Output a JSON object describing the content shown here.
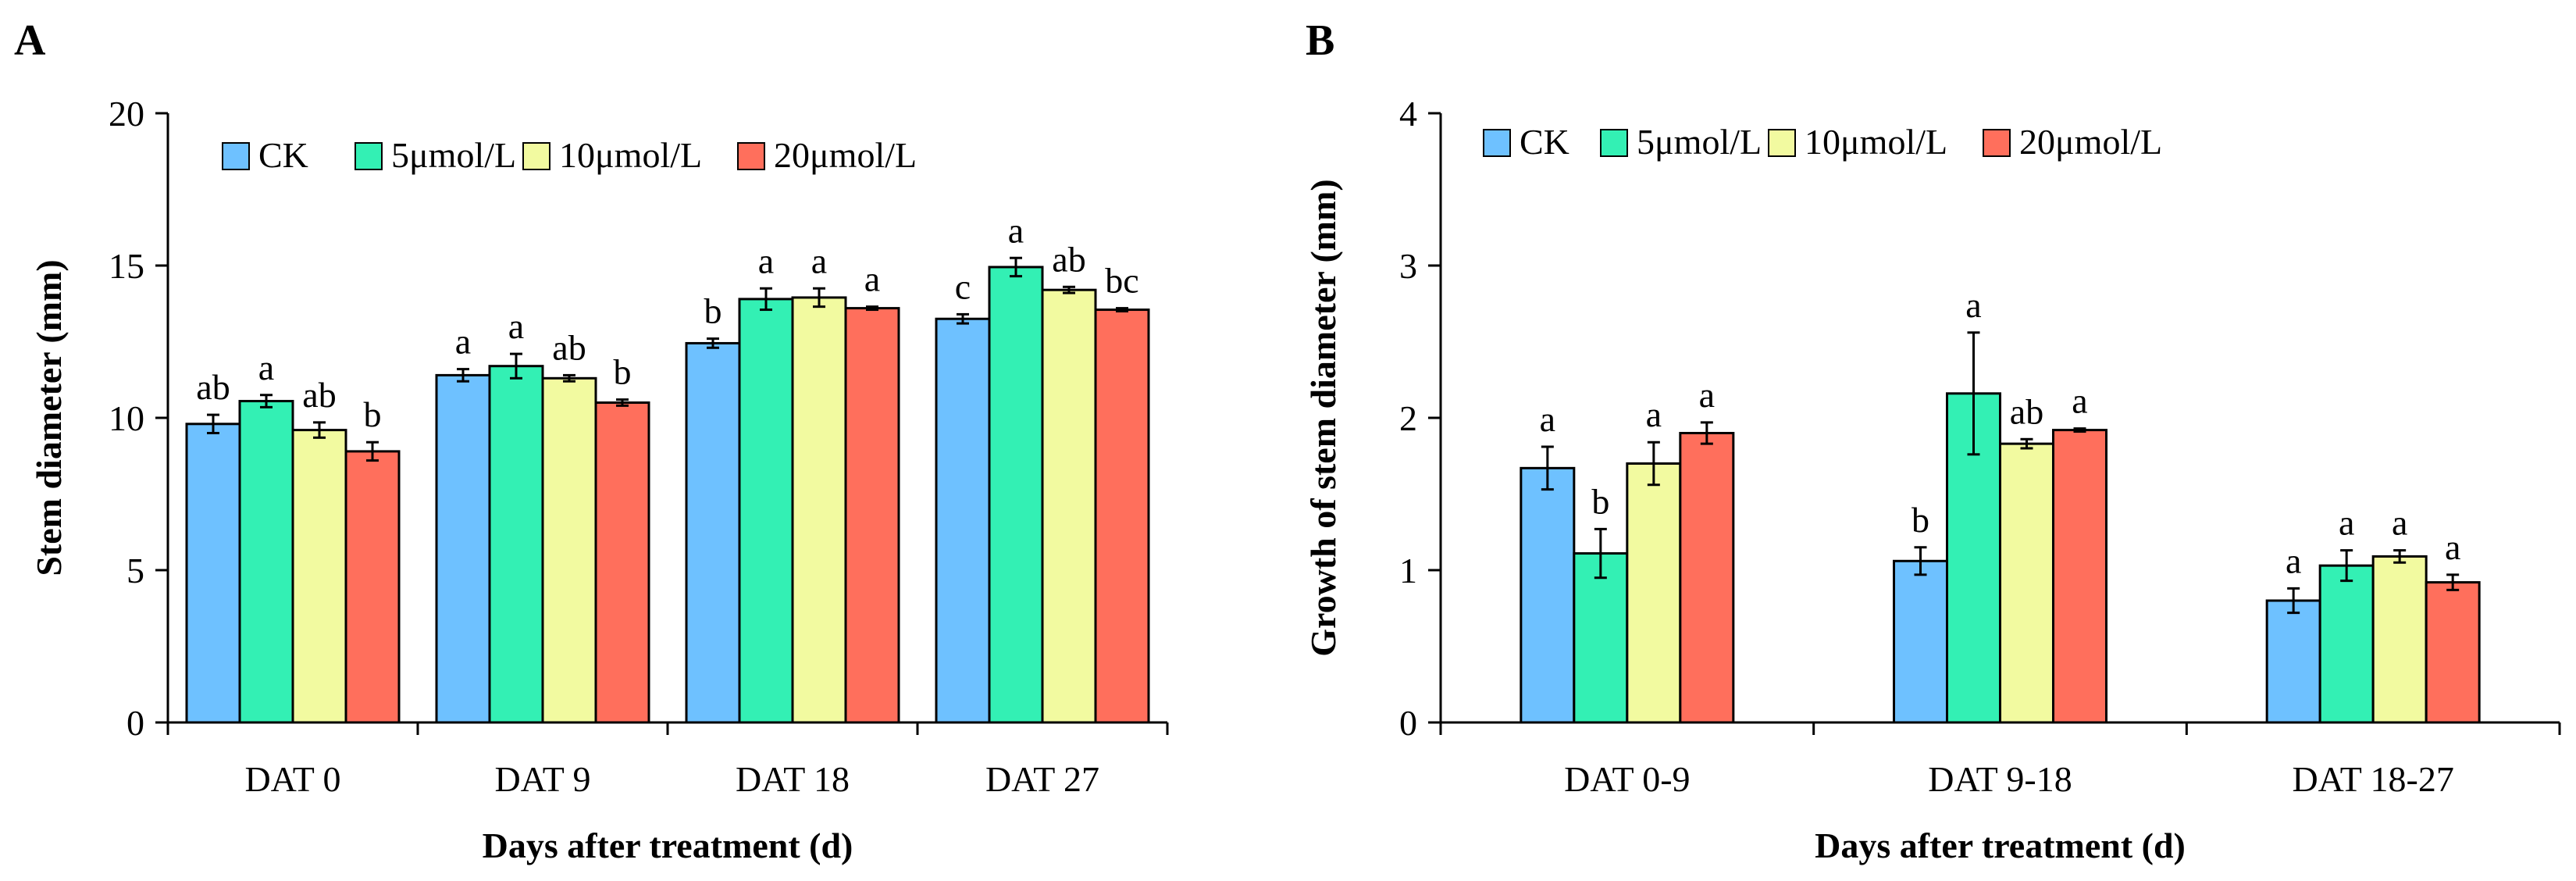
{
  "colors": {
    "CK": "#6EC1FF",
    "5umol": "#33F0B4",
    "10umol": "#F2FAA0",
    "20umol": "#FF6F5C",
    "axis": "#000000"
  },
  "chart_data": [
    {
      "panel": "A",
      "type": "bar",
      "title": "",
      "xlabel": "Days after treatment (d)",
      "ylabel": "Stem diameter (mm)",
      "ylim": [
        0,
        20
      ],
      "yticks": [
        0,
        5,
        10,
        15,
        20
      ],
      "legend_position": "top-left",
      "categories": [
        "DAT 0",
        "DAT 9",
        "DAT 18",
        "DAT 27"
      ],
      "series": [
        {
          "name": "CK",
          "values": [
            9.8,
            11.4,
            12.45,
            13.25
          ],
          "errors": [
            0.3,
            0.2,
            0.15,
            0.15
          ],
          "labels": [
            "ab",
            "a",
            "b",
            "c"
          ]
        },
        {
          "name": "5μmol/L",
          "values": [
            10.55,
            11.7,
            13.9,
            14.95
          ],
          "errors": [
            0.2,
            0.4,
            0.35,
            0.3
          ],
          "labels": [
            "a",
            "a",
            "a",
            "a"
          ]
        },
        {
          "name": "10μmol/L",
          "values": [
            9.6,
            11.3,
            13.95,
            14.2
          ],
          "errors": [
            0.25,
            0.1,
            0.3,
            0.1
          ],
          "labels": [
            "ab",
            "ab",
            "a",
            "ab"
          ]
        },
        {
          "name": "20μmol/L",
          "values": [
            8.9,
            10.5,
            13.6,
            13.55
          ],
          "errors": [
            0.3,
            0.1,
            0.05,
            0.05
          ],
          "labels": [
            "b",
            "b",
            "a",
            "bc"
          ]
        }
      ]
    },
    {
      "panel": "B",
      "type": "bar",
      "title": "",
      "xlabel": "Days after treatment (d)",
      "ylabel": "Growth of stem diameter (mm)",
      "ylim": [
        0,
        4
      ],
      "yticks": [
        0,
        1,
        2,
        3,
        4
      ],
      "legend_position": "top-left",
      "categories": [
        "DAT 0-9",
        "DAT 9-18",
        "DAT 18-27"
      ],
      "series": [
        {
          "name": "CK",
          "values": [
            1.67,
            1.06,
            0.8
          ],
          "errors": [
            0.14,
            0.09,
            0.08
          ],
          "labels": [
            "a",
            "b",
            "a"
          ]
        },
        {
          "name": "5μmol/L",
          "values": [
            1.11,
            2.16,
            1.03
          ],
          "errors": [
            0.16,
            0.4,
            0.1
          ],
          "labels": [
            "b",
            "a",
            "a"
          ]
        },
        {
          "name": "10μmol/L",
          "values": [
            1.7,
            1.83,
            1.09
          ],
          "errors": [
            0.14,
            0.03,
            0.04
          ],
          "labels": [
            "a",
            "ab",
            "a"
          ]
        },
        {
          "name": "20μmol/L",
          "values": [
            1.9,
            1.92,
            0.92
          ],
          "errors": [
            0.07,
            0.01,
            0.05
          ],
          "labels": [
            "a",
            "a",
            "a"
          ]
        }
      ]
    }
  ]
}
